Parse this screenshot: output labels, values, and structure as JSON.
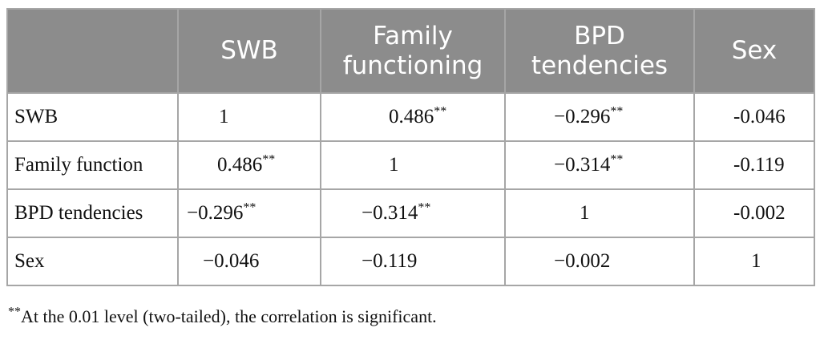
{
  "table": {
    "headers": [
      "",
      "SWB",
      "Family functioning",
      "BPD tendencies",
      "Sex"
    ],
    "rows": [
      {
        "label": "SWB",
        "cells": [
          "1",
          "0.486**",
          "−0.296**",
          "-0.046"
        ]
      },
      {
        "label": "Family function",
        "cells": [
          "0.486**",
          "1",
          "−0.314**",
          "-0.119"
        ]
      },
      {
        "label": "BPD tendencies",
        "cells": [
          "−0.296**",
          "−0.314**",
          "1",
          "-0.002"
        ]
      },
      {
        "label": "Sex",
        "cells": [
          "−0.046",
          "−0.119",
          "−0.002",
          "1"
        ]
      }
    ]
  },
  "footnote": {
    "marker": "**",
    "text": "At the 0.01 level (two-tailed), the correlation is significant."
  },
  "colors": {
    "header_bg": "#8c8c8c",
    "header_text": "#ffffff",
    "grid": "#a6a6a6"
  }
}
